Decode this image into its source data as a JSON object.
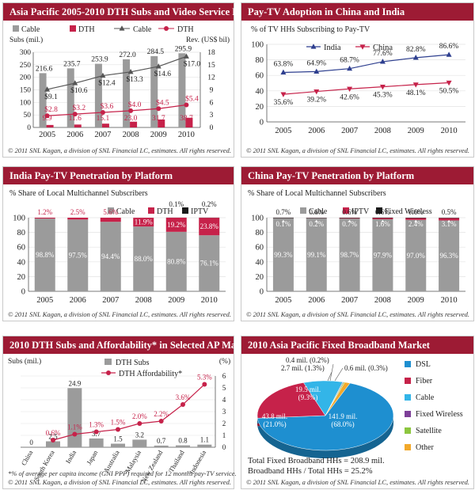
{
  "footer_text": "© 2011 SNL Kagan, a division of SNL Financial LC, estimates. All rights reserved.",
  "colors": {
    "cable": "#9b9b9b",
    "dth": "#c6224a",
    "iptv": "#1a1a1a",
    "fixed_wireless": "#1a1a1a",
    "title_bg": "#9d1b34",
    "line_blue": "#2e3f8f",
    "line_gray": "#555555"
  },
  "charts": {
    "asia_pacific_dth": {
      "title": "Asia Pacific 2005-2010 DTH Subs and Video Service Revenue",
      "chart_data": {
        "type": "bar",
        "categories": [
          "2005",
          "2006",
          "2007",
          "2008",
          "2009",
          "2010"
        ],
        "left_axis_title": "Subs (mil.)",
        "right_axis_title": "Rev. (US$ bil)",
        "ylim_left": [
          0,
          300
        ],
        "ylim_right": [
          0,
          18
        ],
        "left_ticks": [
          "0",
          "50",
          "100",
          "150",
          "200",
          "250",
          "300"
        ],
        "right_ticks": [
          "0",
          "3",
          "6",
          "9",
          "12",
          "15",
          "18"
        ],
        "legend": [
          "Cable",
          "DTH",
          "Cable",
          "DTH"
        ],
        "bar_series": [
          {
            "name": "Cable",
            "values": [
              216.6,
              235.7,
              253.9,
              272.0,
              284.5,
              295.9
            ],
            "labels": [
              "216.6",
              "235.7",
              "253.9",
              "272.0",
              "284.5",
              "295.9"
            ]
          },
          {
            "name": "DTH",
            "values": [
              9.9,
              11.6,
              15.1,
              23.0,
              31.7,
              38.7
            ],
            "labels": [
              "9.9",
              "11.6",
              "15.1",
              "23.0",
              "31.7",
              "38.7"
            ]
          }
        ],
        "line_series": [
          {
            "name": "Cable",
            "values": [
              9.1,
              10.6,
              12.4,
              13.3,
              14.6,
              17.0
            ],
            "labels": [
              "$9.1",
              "$10.6",
              "$12.4",
              "$13.3",
              "$14.6",
              "$17.0"
            ]
          },
          {
            "name": "DTH",
            "values": [
              2.8,
              3.2,
              3.6,
              4.0,
              4.5,
              5.4
            ],
            "labels": [
              "$2.8",
              "$3.2",
              "$3.6",
              "$4.0",
              "$4.5",
              "$5.4"
            ]
          }
        ]
      }
    },
    "paytv_adoption": {
      "title": "Pay-TV Adoption in China and India",
      "chart_data": {
        "type": "line",
        "categories": [
          "2005",
          "2006",
          "2007",
          "2008",
          "2009",
          "2010"
        ],
        "ylabel": "% of TV HHs Subscribing to Pay-TV",
        "ylim": [
          0,
          100
        ],
        "ticks": [
          "0",
          "20",
          "40",
          "60",
          "80",
          "100"
        ],
        "series": [
          {
            "name": "India",
            "values": [
              63.8,
              64.9,
              68.7,
              77.6,
              82.8,
              86.6
            ],
            "labels": [
              "63.8%",
              "64.9%",
              "68.7%",
              "77.6%",
              "82.8%",
              "86.6%"
            ]
          },
          {
            "name": "China",
            "values": [
              35.6,
              39.2,
              42.6,
              45.3,
              48.1,
              50.5
            ],
            "labels": [
              "35.6%",
              "39.2%",
              "42.6%",
              "45.3%",
              "48.1%",
              "50.5%"
            ]
          }
        ]
      }
    },
    "india_platform": {
      "title": "India Pay-TV Penetration by Platform",
      "chart_data": {
        "type": "bar",
        "stacked": true,
        "categories": [
          "2005",
          "2006",
          "2007",
          "2008",
          "2009",
          "2010"
        ],
        "ylabel": "% Share of Local Multichannel Subscribers",
        "ylim": [
          0,
          100
        ],
        "ticks": [
          "0",
          "20",
          "40",
          "60",
          "80",
          "100"
        ],
        "series": [
          {
            "name": "Cable",
            "values": [
              98.8,
              97.5,
              94.4,
              88.0,
              80.8,
              76.1
            ],
            "labels": [
              "98.8%",
              "97.5%",
              "94.4%",
              "88.0%",
              "80.8%",
              "76.1%"
            ]
          },
          {
            "name": "DTH",
            "values": [
              1.2,
              2.5,
              5.6,
              11.9,
              19.2,
              23.8
            ],
            "labels": [
              "1.2%",
              "2.5%",
              "5.6%",
              "11.9%",
              "19.2%",
              "23.8%"
            ]
          },
          {
            "name": "IPTV",
            "values": [
              0,
              0,
              0,
              0,
              0.1,
              0.2
            ],
            "labels": [
              "",
              "",
              "",
              "",
              "0.1%",
              "0.2%"
            ]
          }
        ]
      }
    },
    "china_platform": {
      "title": "China Pay-TV Penetration by Platform",
      "chart_data": {
        "type": "bar",
        "stacked": true,
        "categories": [
          "2005",
          "2006",
          "2007",
          "2008",
          "2009",
          "2010"
        ],
        "ylabel": "% Share of Local Multichannel Subscribers",
        "ylim": [
          0,
          100
        ],
        "ticks": [
          "0",
          "20",
          "40",
          "60",
          "80",
          "100"
        ],
        "series": [
          {
            "name": "Cable",
            "values": [
              99.3,
              99.1,
              98.7,
              97.9,
              97.0,
              96.3
            ],
            "labels": [
              "99.3%",
              "99.1%",
              "98.7%",
              "97.9%",
              "97.0%",
              "96.3%"
            ]
          },
          {
            "name": "IPTV",
            "values": [
              0.1,
              0.2,
              0.7,
              1.6,
              2.4,
              3.1
            ],
            "labels": [
              "0.1%",
              "0.2%",
              "0.7%",
              "1.6%",
              "2.4%",
              "3.1%"
            ]
          },
          {
            "name": "Fixed Wireless",
            "values": [
              0.7,
              0.6,
              0.6,
              0.6,
              0.6,
              0.5
            ],
            "labels": [
              "0.7%",
              "0.6%",
              "0.6%",
              "0.6%",
              "0.6%",
              "0.5%"
            ]
          }
        ]
      }
    },
    "dth_affordability": {
      "title": "2010 DTH Subs and Affordability* in Selected AP Markets",
      "note": "*% of average per capita income (GNI PPP) required for 12 months pay-TV service.",
      "chart_data": {
        "type": "bar",
        "categories": [
          "China",
          "South Korea",
          "India",
          "Japan",
          "Australia",
          "Malaysia",
          "New Zealand",
          "Thailand",
          "Indonesia"
        ],
        "left_axis_title": "Subs (mil.)",
        "right_axis_title": "(%)",
        "ylim_left": [
          0,
          30
        ],
        "ylim_right": [
          0,
          6
        ],
        "right_ticks": [
          "0",
          "1",
          "2",
          "3",
          "4",
          "5",
          "6"
        ],
        "legend": [
          "DTH Subs",
          "DTH Affordability*"
        ],
        "bar_series": {
          "name": "DTH Subs",
          "values": [
            0,
            2.5,
            24.9,
            3.7,
            1.5,
            3.2,
            0.7,
            0.8,
            1.1
          ],
          "labels": [
            "0",
            "2.5",
            "24.9",
            "3.7",
            "1.5",
            "3.2",
            "0.7",
            "0.8",
            "1.1"
          ]
        },
        "line_series": {
          "name": "DTH Affordability*",
          "values": [
            null,
            0.6,
            1.1,
            1.3,
            1.5,
            2.0,
            2.2,
            3.6,
            5.3
          ],
          "labels": [
            "",
            "0.6%",
            "1.1%",
            "1.3%",
            "1.5%",
            "2.0%",
            "2.2%",
            "3.6%",
            "5.3%"
          ]
        }
      }
    },
    "broadband_market": {
      "title": "2010 Asia Pacific Fixed Broadband Market",
      "chart_data": {
        "type": "pie",
        "slices": [
          {
            "name": "DSL",
            "value": 141.9,
            "label": "141.9 mil. (68.0%)",
            "color": "#1e8fd0"
          },
          {
            "name": "Fiber",
            "value": 43.8,
            "label": "43.8 mil. (21.0%)",
            "color": "#c6224a"
          },
          {
            "name": "Cable",
            "value": 19.5,
            "label": "19.5 mil. (9.3%)",
            "color": "#33b5e8"
          },
          {
            "name": "Fixed Wireless",
            "value": 0.4,
            "label": "0.4 mil. (0.2%)",
            "color": "#7d3f98"
          },
          {
            "name": "Satellite",
            "value": 0.6,
            "label": "0.6 mil. (0.3%)",
            "color": "#8cc63f"
          },
          {
            "name": "Other",
            "value": 2.7,
            "label": "2.7 mil. (1.3%)",
            "color": "#f2a92b"
          }
        ],
        "total_text": "Total Fixed Broadband HHs = 208.9 mil.",
        "ratio_text": "Broadband HHs / Total HHs = 25.2%"
      }
    }
  }
}
